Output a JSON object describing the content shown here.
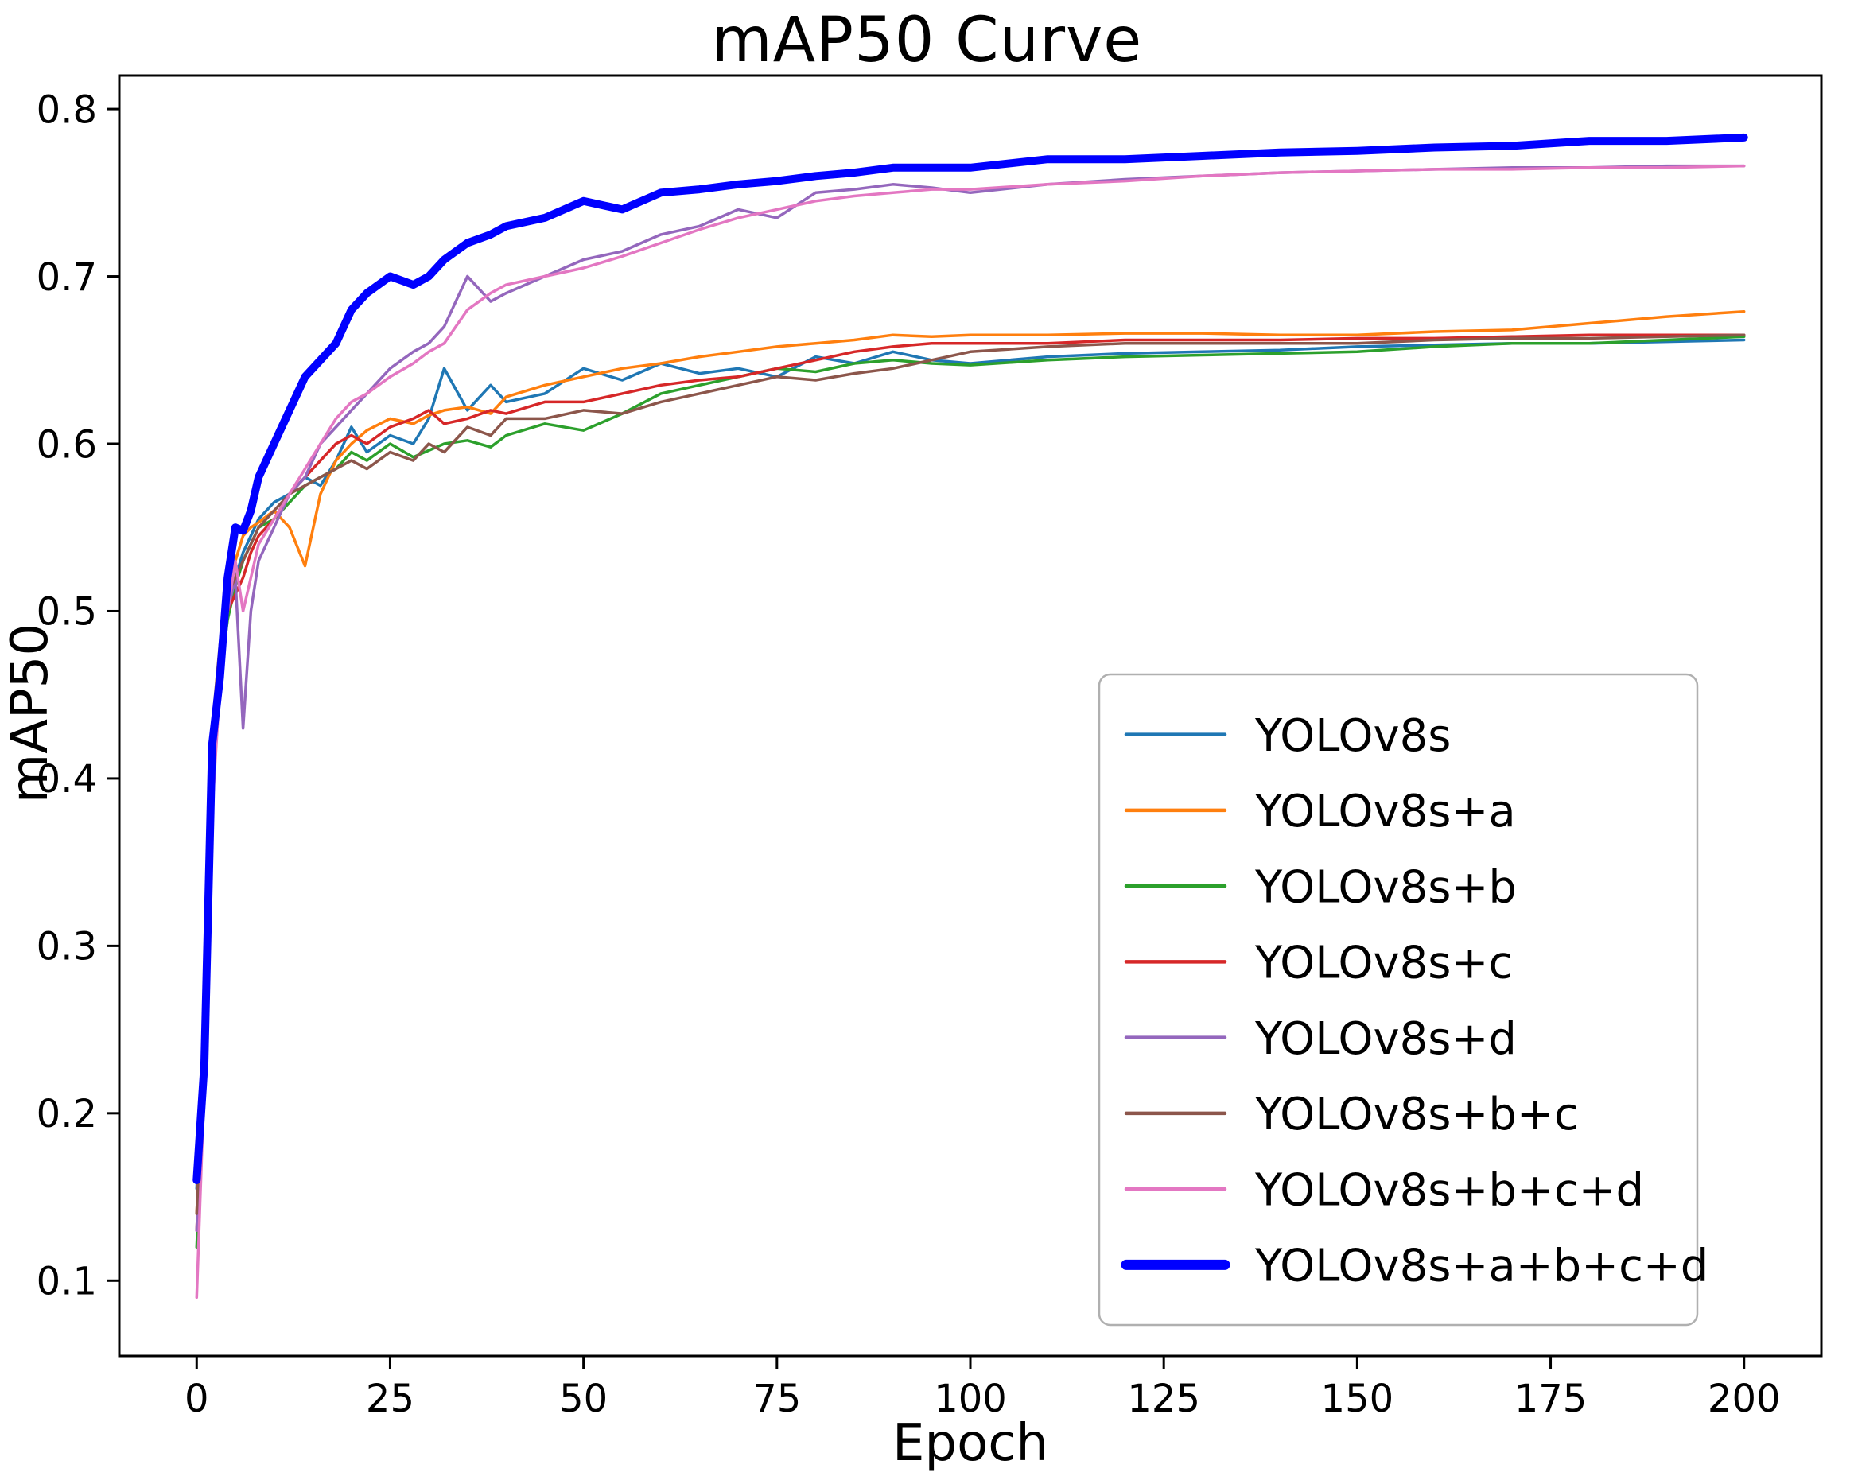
{
  "chart_data": {
    "type": "line",
    "title": "mAP50 Curve",
    "xlabel": "Epoch",
    "ylabel": "mAP50",
    "xlim": [
      -10,
      210
    ],
    "ylim": [
      0.055,
      0.82
    ],
    "x_ticks": [
      0,
      25,
      50,
      75,
      100,
      125,
      150,
      175,
      200
    ],
    "y_ticks": [
      0.1,
      0.2,
      0.3,
      0.4,
      0.5,
      0.6,
      0.7,
      0.8
    ],
    "grid": false,
    "legend_position": "lower-right-inside",
    "x": [
      0,
      1,
      2,
      3,
      4,
      5,
      6,
      7,
      8,
      10,
      12,
      14,
      16,
      18,
      20,
      22,
      25,
      28,
      30,
      32,
      35,
      38,
      40,
      45,
      50,
      55,
      60,
      65,
      70,
      75,
      80,
      85,
      90,
      95,
      100,
      110,
      120,
      130,
      140,
      150,
      160,
      170,
      180,
      190,
      200
    ],
    "series": [
      {
        "name": "YOLOv8s",
        "color": "#1f77b4",
        "weight": "thin",
        "values": [
          0.155,
          0.25,
          0.43,
          0.47,
          0.5,
          0.52,
          0.535,
          0.545,
          0.555,
          0.565,
          0.57,
          0.58,
          0.575,
          0.59,
          0.61,
          0.595,
          0.605,
          0.6,
          0.615,
          0.645,
          0.62,
          0.635,
          0.625,
          0.63,
          0.645,
          0.638,
          0.648,
          0.642,
          0.645,
          0.64,
          0.652,
          0.648,
          0.655,
          0.65,
          0.648,
          0.652,
          0.654,
          0.655,
          0.656,
          0.658,
          0.659,
          0.66,
          0.66,
          0.661,
          0.662
        ]
      },
      {
        "name": "YOLOv8s+a",
        "color": "#ff7f0e",
        "weight": "thin",
        "values": [
          0.14,
          0.24,
          0.42,
          0.47,
          0.51,
          0.53,
          0.545,
          0.55,
          0.553,
          0.56,
          0.55,
          0.527,
          0.57,
          0.59,
          0.6,
          0.608,
          0.615,
          0.612,
          0.617,
          0.62,
          0.622,
          0.618,
          0.628,
          0.635,
          0.64,
          0.645,
          0.648,
          0.652,
          0.655,
          0.658,
          0.66,
          0.662,
          0.665,
          0.664,
          0.665,
          0.665,
          0.666,
          0.666,
          0.665,
          0.665,
          0.667,
          0.668,
          0.672,
          0.676,
          0.679
        ]
      },
      {
        "name": "YOLOv8s+b",
        "color": "#2ca02c",
        "weight": "thin",
        "values": [
          0.12,
          0.23,
          0.41,
          0.46,
          0.495,
          0.515,
          0.53,
          0.54,
          0.55,
          0.555,
          0.565,
          0.575,
          0.58,
          0.585,
          0.595,
          0.59,
          0.6,
          0.592,
          0.596,
          0.6,
          0.602,
          0.598,
          0.605,
          0.612,
          0.608,
          0.618,
          0.63,
          0.635,
          0.64,
          0.645,
          0.643,
          0.648,
          0.65,
          0.648,
          0.647,
          0.65,
          0.652,
          0.653,
          0.654,
          0.655,
          0.658,
          0.66,
          0.66,
          0.662,
          0.664
        ]
      },
      {
        "name": "YOLOv8s+c",
        "color": "#d62728",
        "weight": "thin",
        "values": [
          0.13,
          0.24,
          0.42,
          0.47,
          0.5,
          0.51,
          0.52,
          0.535,
          0.545,
          0.555,
          0.57,
          0.58,
          0.59,
          0.6,
          0.605,
          0.6,
          0.61,
          0.615,
          0.62,
          0.612,
          0.615,
          0.62,
          0.618,
          0.625,
          0.625,
          0.63,
          0.635,
          0.638,
          0.64,
          0.645,
          0.65,
          0.655,
          0.658,
          0.66,
          0.66,
          0.66,
          0.662,
          0.662,
          0.662,
          0.663,
          0.663,
          0.664,
          0.665,
          0.665,
          0.665
        ]
      },
      {
        "name": "YOLOv8s+d",
        "color": "#9467bd",
        "weight": "thin",
        "values": [
          0.13,
          0.23,
          0.4,
          0.47,
          0.5,
          0.52,
          0.43,
          0.5,
          0.53,
          0.55,
          0.57,
          0.58,
          0.6,
          0.61,
          0.62,
          0.63,
          0.645,
          0.655,
          0.66,
          0.67,
          0.7,
          0.685,
          0.69,
          0.7,
          0.71,
          0.715,
          0.725,
          0.73,
          0.74,
          0.735,
          0.75,
          0.752,
          0.755,
          0.753,
          0.75,
          0.755,
          0.758,
          0.76,
          0.762,
          0.763,
          0.764,
          0.765,
          0.765,
          0.766,
          0.766
        ]
      },
      {
        "name": "YOLOv8s+b+c",
        "color": "#8c564b",
        "weight": "thin",
        "values": [
          0.14,
          0.25,
          0.43,
          0.48,
          0.51,
          0.52,
          0.53,
          0.54,
          0.55,
          0.56,
          0.57,
          0.575,
          0.58,
          0.585,
          0.59,
          0.585,
          0.595,
          0.59,
          0.6,
          0.595,
          0.61,
          0.605,
          0.615,
          0.615,
          0.62,
          0.618,
          0.625,
          0.63,
          0.635,
          0.64,
          0.638,
          0.642,
          0.645,
          0.65,
          0.655,
          0.658,
          0.66,
          0.66,
          0.66,
          0.66,
          0.662,
          0.663,
          0.663,
          0.664,
          0.665
        ]
      },
      {
        "name": "YOLOv8s+b+c+d",
        "color": "#e377c2",
        "weight": "thin",
        "values": [
          0.09,
          0.22,
          0.38,
          0.455,
          0.5,
          0.53,
          0.5,
          0.52,
          0.54,
          0.555,
          0.57,
          0.585,
          0.6,
          0.615,
          0.625,
          0.63,
          0.64,
          0.648,
          0.655,
          0.66,
          0.68,
          0.69,
          0.695,
          0.7,
          0.705,
          0.712,
          0.72,
          0.728,
          0.735,
          0.74,
          0.745,
          0.748,
          0.75,
          0.752,
          0.752,
          0.755,
          0.757,
          0.76,
          0.762,
          0.763,
          0.764,
          0.764,
          0.765,
          0.765,
          0.766
        ]
      },
      {
        "name": "YOLOv8s+a+b+c+d",
        "color": "#0000ff",
        "weight": "bold",
        "values": [
          0.16,
          0.23,
          0.42,
          0.46,
          0.52,
          0.55,
          0.548,
          0.56,
          0.58,
          0.6,
          0.62,
          0.64,
          0.65,
          0.66,
          0.68,
          0.69,
          0.7,
          0.695,
          0.7,
          0.71,
          0.72,
          0.725,
          0.73,
          0.735,
          0.745,
          0.74,
          0.75,
          0.752,
          0.755,
          0.757,
          0.76,
          0.762,
          0.765,
          0.765,
          0.765,
          0.77,
          0.77,
          0.772,
          0.774,
          0.775,
          0.777,
          0.778,
          0.781,
          0.781,
          0.783
        ]
      }
    ]
  }
}
